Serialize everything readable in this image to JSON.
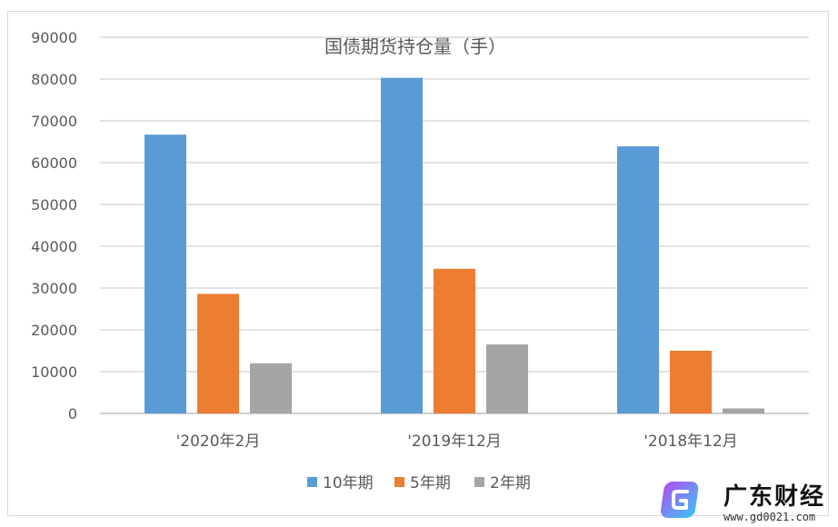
{
  "chart_data": {
    "type": "bar",
    "title": "国债期货持仓量（手）",
    "categories": [
      "'2020年2月",
      "'2019年12月",
      "'2018年12月"
    ],
    "series": [
      {
        "name": "10年期",
        "values": [
          66700,
          80300,
          63900
        ]
      },
      {
        "name": "5年期",
        "values": [
          28600,
          34600,
          15000
        ]
      },
      {
        "name": "2年期",
        "values": [
          12000,
          16500,
          1200
        ]
      }
    ],
    "ylim": [
      0,
      90000
    ],
    "yticks": [
      "0",
      "10000",
      "20000",
      "30000",
      "40000",
      "50000",
      "60000",
      "70000",
      "80000",
      "90000"
    ],
    "grid": true,
    "legend": "bottom",
    "colors": [
      "#5b9bd5",
      "#ed7d31",
      "#a5a5a5"
    ]
  },
  "watermark": {
    "name": "广东财经",
    "url": "www.gd0021.com"
  }
}
